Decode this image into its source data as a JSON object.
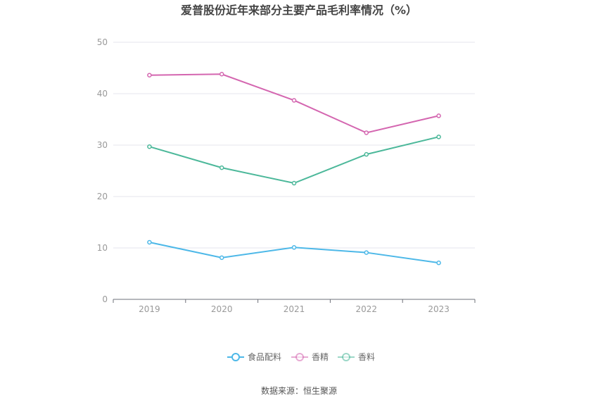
{
  "chart_data": {
    "type": "line",
    "title": "爱普股份近年来部分主要产品毛利率情况（%）",
    "categories": [
      "2019",
      "2020",
      "2021",
      "2022",
      "2023"
    ],
    "ylim": [
      0,
      50
    ],
    "yticks": [
      0,
      10,
      20,
      30,
      40,
      50
    ],
    "grid": true,
    "legend_position": "bottom",
    "series": [
      {
        "name": "食品配料",
        "color": "#4db8e8",
        "values": [
          11.1,
          8.1,
          10.1,
          9.1,
          7.1
        ]
      },
      {
        "name": "香精",
        "color": "#d466b0",
        "values": [
          43.6,
          43.8,
          38.7,
          32.4,
          35.7
        ]
      },
      {
        "name": "香料",
        "color": "#4cb89a",
        "values": [
          29.7,
          25.6,
          22.6,
          28.2,
          31.6
        ]
      }
    ],
    "source": "数据来源：恒生聚源"
  }
}
